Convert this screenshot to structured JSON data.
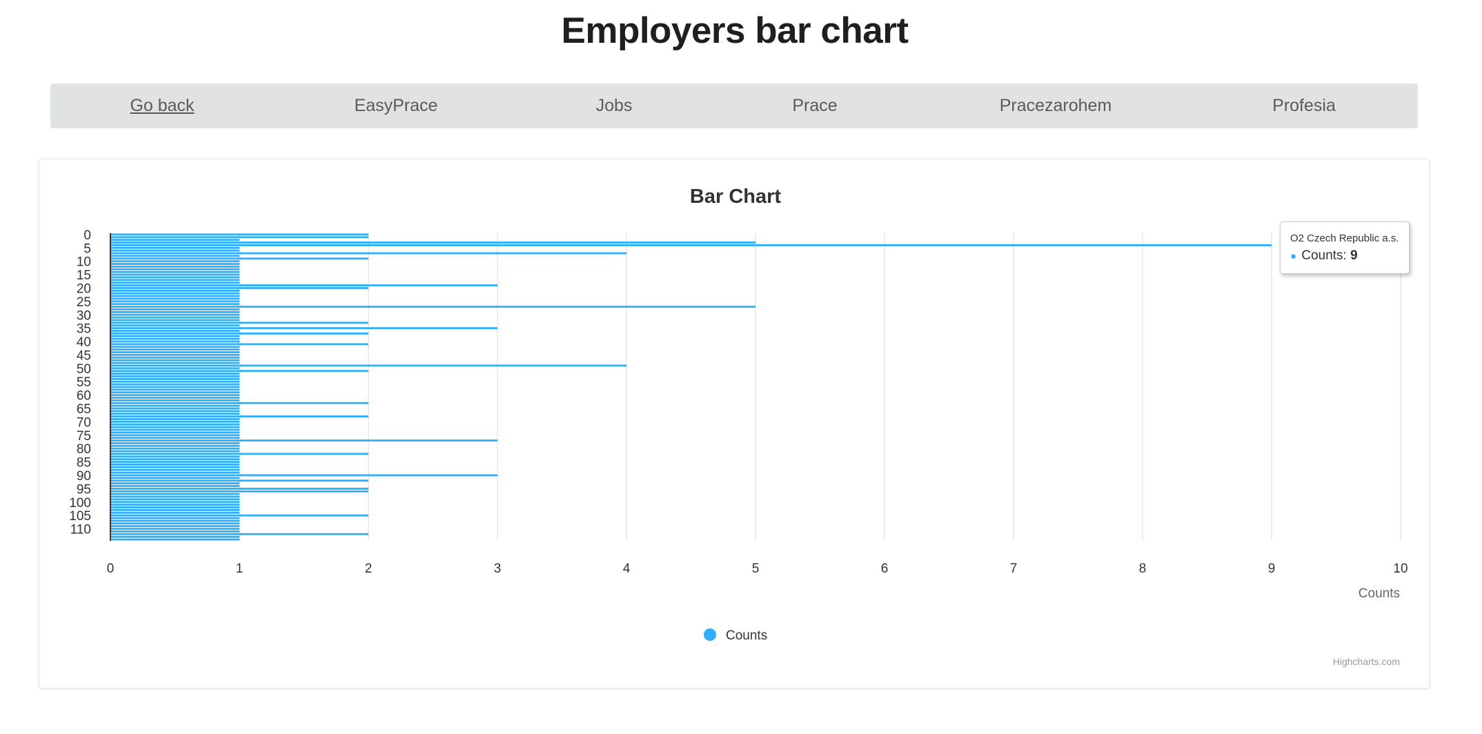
{
  "page": {
    "title": "Employers bar chart"
  },
  "nav": {
    "items": [
      {
        "label": "Go back",
        "name": "nav-go-back"
      },
      {
        "label": "EasyPrace",
        "name": "nav-easyprace"
      },
      {
        "label": "Jobs",
        "name": "nav-jobs"
      },
      {
        "label": "Prace",
        "name": "nav-prace"
      },
      {
        "label": "Pracezarohem",
        "name": "nav-pracezarohem"
      },
      {
        "label": "Profesia",
        "name": "nav-profesia"
      }
    ]
  },
  "tooltip": {
    "title": "O2 Czech Republic a.s.",
    "series_label": "Counts",
    "value": "9"
  },
  "credits": "Highcharts.com",
  "chart_data": {
    "type": "bar",
    "orientation": "horizontal",
    "title": "Bar Chart",
    "xlabel": "",
    "ylabel": "Counts",
    "category_ticks": [
      "0",
      "5",
      "10",
      "15",
      "20",
      "25",
      "30",
      "35",
      "40",
      "45",
      "50",
      "55",
      "60",
      "65",
      "70",
      "75",
      "80",
      "85",
      "90",
      "95",
      "100",
      "105",
      "110"
    ],
    "value_ticks": [
      "0",
      "1",
      "2",
      "3",
      "4",
      "5",
      "6",
      "7",
      "8",
      "9",
      "10"
    ],
    "xlim": [
      0,
      10
    ],
    "grid": true,
    "legend_position": "bottom-center",
    "color": "#2caffe",
    "series": [
      {
        "name": "Counts",
        "values": [
          2,
          2,
          1,
          5,
          9,
          1,
          1,
          4,
          1,
          2,
          1,
          1,
          1,
          1,
          1,
          1,
          1,
          1,
          1,
          3,
          2,
          1,
          1,
          1,
          1,
          1,
          1,
          5,
          1,
          1,
          1,
          1,
          1,
          2,
          1,
          3,
          1,
          2,
          1,
          1,
          1,
          2,
          1,
          1,
          1,
          1,
          1,
          1,
          1,
          4,
          1,
          2,
          1,
          1,
          1,
          1,
          1,
          1,
          1,
          1,
          1,
          1,
          1,
          2,
          1,
          1,
          1,
          1,
          2,
          1,
          1,
          1,
          1,
          1,
          1,
          1,
          1,
          3,
          1,
          1,
          1,
          1,
          2,
          1,
          1,
          1,
          1,
          1,
          1,
          1,
          3,
          1,
          2,
          1,
          1,
          2,
          2,
          1,
          1,
          1,
          1,
          1,
          1,
          1,
          1,
          2,
          1,
          1,
          1,
          1,
          1,
          1,
          2,
          1,
          1
        ]
      }
    ]
  }
}
